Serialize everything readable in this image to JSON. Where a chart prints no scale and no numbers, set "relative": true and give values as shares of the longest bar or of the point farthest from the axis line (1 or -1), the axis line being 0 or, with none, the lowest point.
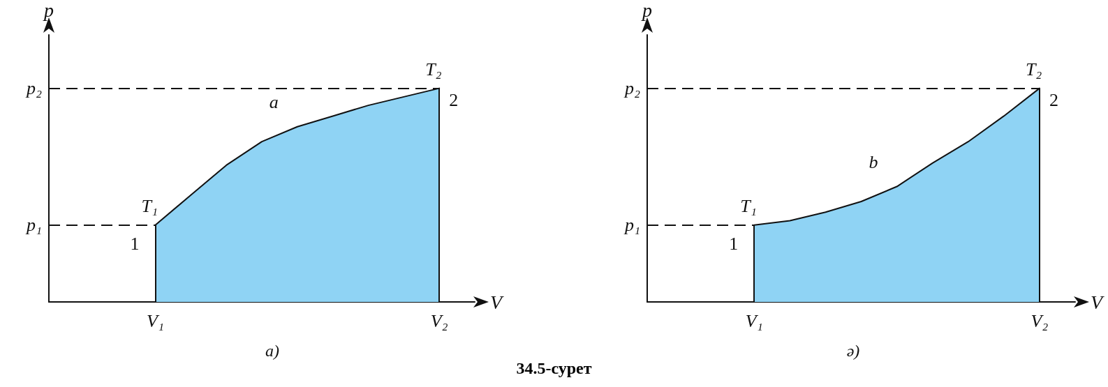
{
  "chart_data": [
    {
      "type": "area",
      "relative": true,
      "title": "a)",
      "xlabel": "V",
      "ylabel": "p",
      "marker": "none",
      "line_style": "solid",
      "categories": [
        null,
        null,
        null,
        "V₁",
        null,
        null,
        null,
        null,
        null,
        null,
        null,
        "V₂",
        null
      ],
      "series": [
        {
          "color": "#8fd3f4",
          "values": [
            null,
            null,
            null,
            0.36,
            0.5,
            0.64,
            0.75,
            0.82,
            0.87,
            0.92,
            0.96,
            1,
            null
          ]
        }
      ],
      "ref_lines": [
        {
          "axis": "y",
          "value": 0.36,
          "label": "p₁",
          "line_style": "dashed"
        },
        {
          "axis": "y",
          "value": 1,
          "label": "p₂",
          "line_style": "dashed"
        }
      ],
      "annotations": [
        "a",
        {
          "text": "T₁",
          "x": "V₁",
          "y": 0.36
        },
        {
          "text": "1",
          "x": "V₁",
          "y": 0.36
        },
        {
          "text": "T₂",
          "x": "V₂",
          "y": 1
        },
        {
          "text": "2",
          "x": "V₂",
          "y": 1
        },
        "34.5-сурет"
      ]
    },
    {
      "type": "area",
      "relative": true,
      "title": "ә)",
      "xlabel": "V",
      "ylabel": "p",
      "marker": "none",
      "line_style": "solid",
      "categories": [
        null,
        null,
        null,
        "V₁",
        null,
        null,
        null,
        null,
        null,
        null,
        null,
        "V₂",
        null
      ],
      "series": [
        {
          "color": "#8fd3f4",
          "values": [
            null,
            null,
            null,
            0.36,
            0.38,
            0.42,
            0.47,
            0.54,
            0.65,
            0.75,
            0.87,
            1,
            null
          ]
        }
      ],
      "ref_lines": [
        {
          "axis": "y",
          "value": 0.36,
          "label": "p₁",
          "line_style": "dashed"
        },
        {
          "axis": "y",
          "value": 1,
          "label": "p₂",
          "line_style": "dashed"
        }
      ],
      "annotations": [
        "b",
        {
          "text": "T₁",
          "x": "V₁",
          "y": 0.36
        },
        {
          "text": "1",
          "x": "V₁",
          "y": 0.36
        },
        {
          "text": "T₂",
          "x": "V₂",
          "y": 1
        },
        {
          "text": "2",
          "x": "V₂",
          "y": 1
        }
      ]
    }
  ]
}
